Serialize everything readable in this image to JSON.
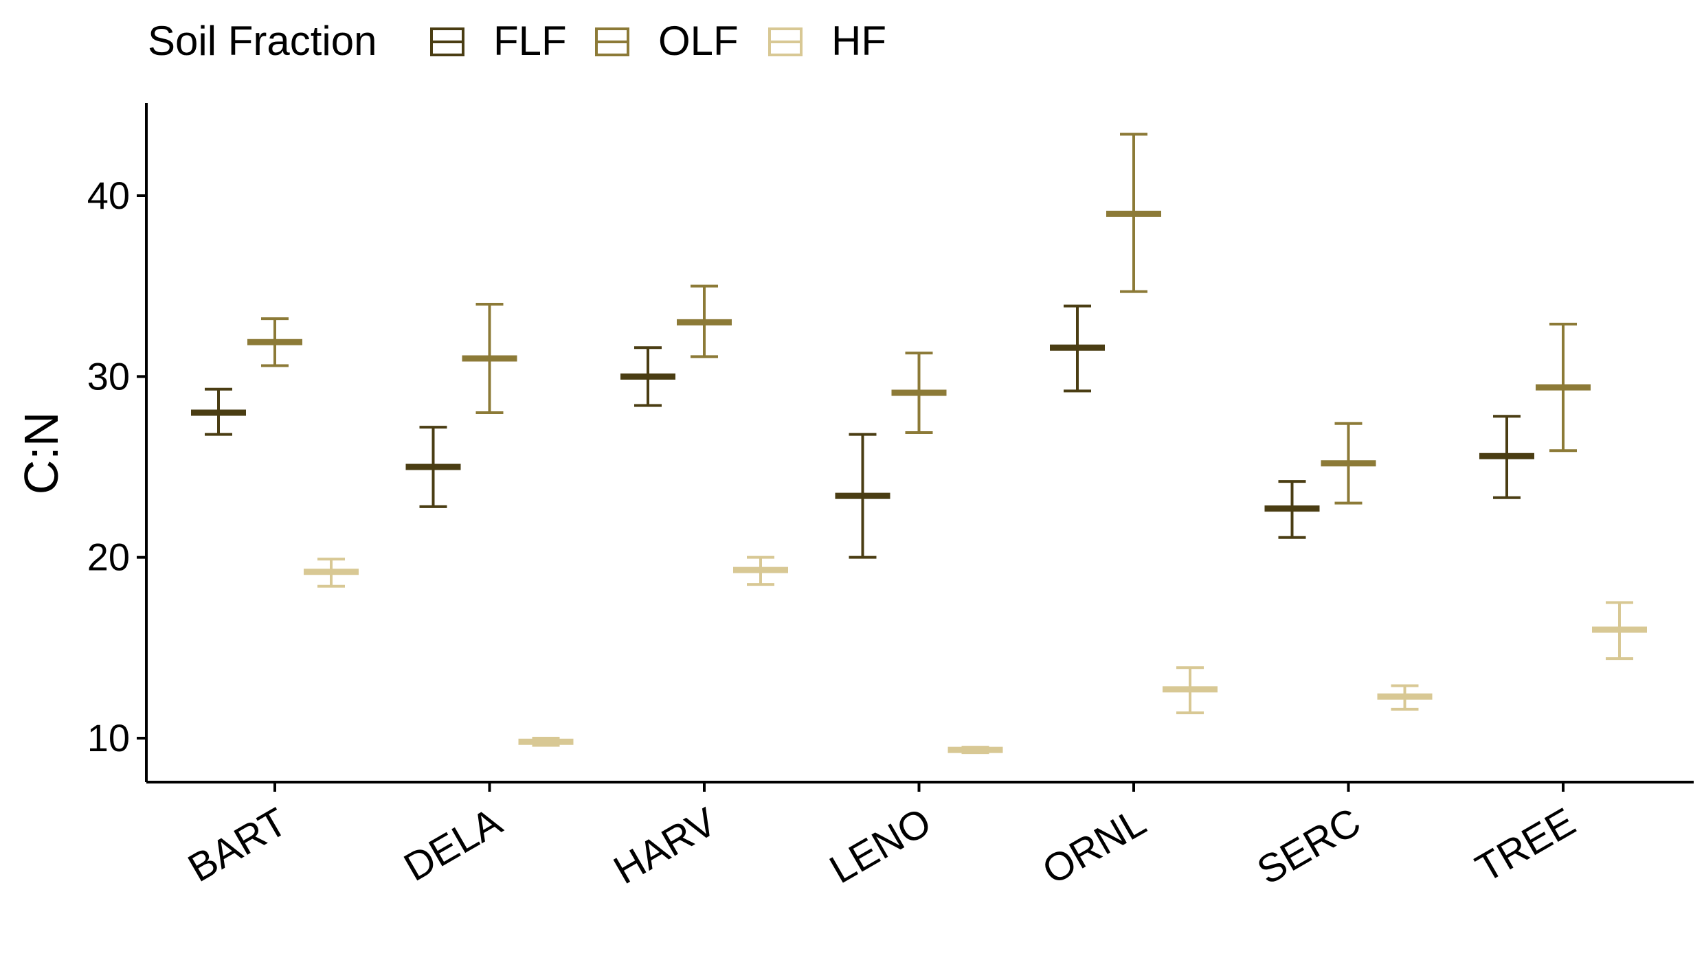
{
  "chart_data": {
    "type": "errorbar",
    "title": "",
    "xlabel": "",
    "ylabel": "C:N",
    "ylim": [
      7.5,
      45
    ],
    "yticks": [
      10,
      20,
      30,
      40
    ],
    "grid": false,
    "legend": {
      "title": "Soil Fraction",
      "placement": "top-left"
    },
    "categories": [
      "BART",
      "DELA",
      "HARV",
      "LENO",
      "ORNL",
      "SERC",
      "TREE"
    ],
    "series": [
      {
        "name": "FLF",
        "color": "#4a3d13",
        "mean": [
          28.0,
          25.0,
          30.0,
          23.4,
          31.6,
          22.7,
          25.6
        ],
        "lower": [
          26.8,
          22.8,
          28.4,
          20.0,
          29.2,
          21.1,
          23.3
        ],
        "upper": [
          29.3,
          27.2,
          31.6,
          26.8,
          33.9,
          24.2,
          27.8
        ]
      },
      {
        "name": "OLF",
        "color": "#8c7a37",
        "mean": [
          31.9,
          31.0,
          33.0,
          29.1,
          39.0,
          25.2,
          29.4
        ],
        "lower": [
          30.6,
          28.0,
          31.1,
          26.9,
          34.7,
          23.0,
          25.9
        ],
        "upper": [
          33.2,
          34.0,
          35.0,
          31.3,
          43.4,
          27.4,
          32.9
        ]
      },
      {
        "name": "HF",
        "color": "#d8c894",
        "mean": [
          19.2,
          9.8,
          19.3,
          9.35,
          12.7,
          12.3,
          16.0
        ],
        "lower": [
          18.4,
          9.6,
          18.5,
          9.2,
          11.4,
          11.6,
          14.4
        ],
        "upper": [
          19.9,
          10.0,
          20.0,
          9.5,
          13.9,
          12.9,
          17.5
        ]
      }
    ]
  }
}
